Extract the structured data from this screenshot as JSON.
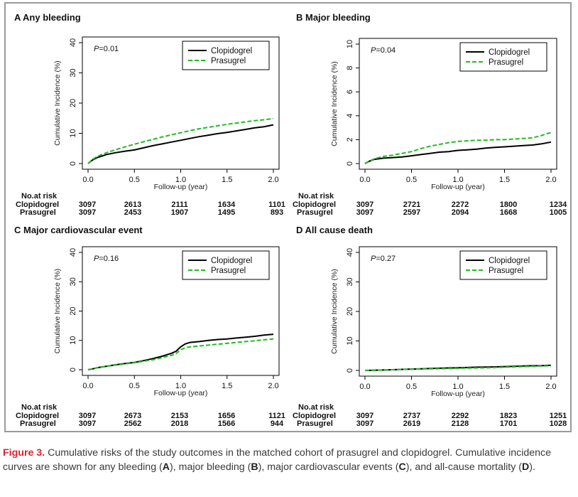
{
  "chart_data": [
    {
      "type": "line",
      "panel_label": "A",
      "title": "Any bleeding",
      "ylabel": "Cumulative Incidence (%)",
      "xlabel": "Follow-up (year)",
      "ylim": [
        0,
        40
      ],
      "yticks": [
        "0",
        "10",
        "20",
        "30",
        "40"
      ],
      "xlim": [
        0,
        2
      ],
      "xticks": [
        "0.0",
        "0.5",
        "1.0",
        "1.5",
        "2.0"
      ],
      "p_prefix": "P",
      "p_value": "=0.01",
      "legend_position": "top-right",
      "series": [
        {
          "name": "Clopidogrel",
          "color": "#000000",
          "dash": "solid",
          "x": [
            0,
            0.05,
            0.1,
            0.2,
            0.3,
            0.4,
            0.5,
            0.6,
            0.7,
            0.8,
            0.9,
            1.0,
            1.1,
            1.2,
            1.3,
            1.4,
            1.5,
            1.6,
            1.7,
            1.8,
            1.9,
            2.0
          ],
          "y": [
            0,
            1.2,
            2.0,
            3.0,
            3.6,
            4.1,
            4.5,
            5.2,
            5.9,
            6.5,
            7.1,
            7.7,
            8.3,
            8.9,
            9.4,
            9.9,
            10.3,
            10.8,
            11.3,
            11.8,
            12.2,
            12.8
          ]
        },
        {
          "name": "Prasugrel",
          "color": "#22bb22",
          "dash": "dashed",
          "x": [
            0,
            0.05,
            0.1,
            0.2,
            0.3,
            0.4,
            0.5,
            0.6,
            0.7,
            0.8,
            0.9,
            1.0,
            1.1,
            1.2,
            1.3,
            1.4,
            1.5,
            1.6,
            1.7,
            1.8,
            1.9,
            2.0
          ],
          "y": [
            0,
            1.4,
            2.4,
            3.6,
            4.6,
            5.5,
            6.4,
            7.2,
            8.0,
            8.8,
            9.5,
            10.2,
            10.9,
            11.5,
            12.0,
            12.5,
            13.0,
            13.4,
            13.8,
            14.2,
            14.5,
            14.9
          ]
        }
      ],
      "risk_header": "No.at risk",
      "risk_table": [
        {
          "label": "Clopidogrel",
          "values": [
            "3097",
            "2613",
            "2111",
            "1634",
            "1101"
          ]
        },
        {
          "label": "Prasugrel",
          "values": [
            "3097",
            "2453",
            "1907",
            "1495",
            "893"
          ]
        }
      ]
    },
    {
      "type": "line",
      "panel_label": "B",
      "title": "Major bleeding",
      "ylabel": "Cumulative Incidence (%)",
      "xlabel": "Follow-up (year)",
      "ylim": [
        0,
        10
      ],
      "yticks": [
        "0",
        "2",
        "4",
        "6",
        "8",
        "10"
      ],
      "xlim": [
        0,
        2
      ],
      "xticks": [
        "0.0",
        "0.5",
        "1.0",
        "1.5",
        "2.0"
      ],
      "p_prefix": "P",
      "p_value": "=0.04",
      "legend_position": "top-right",
      "series": [
        {
          "name": "Clopidogrel",
          "color": "#000000",
          "dash": "solid",
          "x": [
            0,
            0.05,
            0.1,
            0.2,
            0.3,
            0.4,
            0.5,
            0.6,
            0.7,
            0.8,
            0.9,
            1.0,
            1.1,
            1.2,
            1.3,
            1.4,
            1.5,
            1.6,
            1.7,
            1.8,
            1.9,
            2.0
          ],
          "y": [
            0,
            0.2,
            0.35,
            0.45,
            0.5,
            0.55,
            0.65,
            0.75,
            0.85,
            0.95,
            1.0,
            1.1,
            1.15,
            1.2,
            1.3,
            1.35,
            1.4,
            1.45,
            1.5,
            1.55,
            1.65,
            1.8
          ]
        },
        {
          "name": "Prasugrel",
          "color": "#22bb22",
          "dash": "dashed",
          "x": [
            0,
            0.05,
            0.1,
            0.2,
            0.3,
            0.4,
            0.5,
            0.6,
            0.7,
            0.8,
            0.9,
            1.0,
            1.1,
            1.2,
            1.3,
            1.4,
            1.5,
            1.6,
            1.7,
            1.8,
            1.9,
            2.0
          ],
          "y": [
            0,
            0.2,
            0.4,
            0.6,
            0.7,
            0.85,
            1.0,
            1.25,
            1.45,
            1.6,
            1.75,
            1.85,
            1.9,
            1.95,
            1.95,
            2.0,
            2.0,
            2.05,
            2.1,
            2.15,
            2.35,
            2.6
          ]
        }
      ],
      "risk_header": "No.at risk",
      "risk_table": [
        {
          "label": "Clopidogrel",
          "values": [
            "3097",
            "2721",
            "2272",
            "1800",
            "1234"
          ]
        },
        {
          "label": "Prasugrel",
          "values": [
            "3097",
            "2597",
            "2094",
            "1668",
            "1005"
          ]
        }
      ]
    },
    {
      "type": "line",
      "panel_label": "C",
      "title": "Major cardiovascular event",
      "ylabel": "Cumulative Incidence (%)",
      "xlabel": "Follow-up (year)",
      "ylim": [
        0,
        40
      ],
      "yticks": [
        "0",
        "10",
        "20",
        "30",
        "40"
      ],
      "xlim": [
        0,
        2
      ],
      "xticks": [
        "0.0",
        "0.5",
        "1.0",
        "1.5",
        "2.0"
      ],
      "p_prefix": "P",
      "p_value": "=0.16",
      "legend_position": "top-right",
      "series": [
        {
          "name": "Clopidogrel",
          "color": "#000000",
          "dash": "solid",
          "x": [
            0,
            0.05,
            0.1,
            0.2,
            0.3,
            0.4,
            0.5,
            0.6,
            0.7,
            0.8,
            0.9,
            0.95,
            1.0,
            1.05,
            1.1,
            1.2,
            1.3,
            1.4,
            1.5,
            1.6,
            1.7,
            1.8,
            1.9,
            2.0
          ],
          "y": [
            0,
            0.3,
            0.7,
            1.2,
            1.7,
            2.1,
            2.5,
            3.1,
            3.8,
            4.6,
            5.6,
            6.3,
            7.8,
            8.8,
            9.3,
            9.6,
            10.0,
            10.3,
            10.5,
            10.8,
            11.1,
            11.4,
            11.8,
            12.1
          ]
        },
        {
          "name": "Prasugrel",
          "color": "#22bb22",
          "dash": "dashed",
          "x": [
            0,
            0.05,
            0.1,
            0.2,
            0.3,
            0.4,
            0.5,
            0.6,
            0.7,
            0.8,
            0.9,
            0.95,
            1.0,
            1.05,
            1.1,
            1.2,
            1.3,
            1.4,
            1.5,
            1.6,
            1.7,
            1.8,
            1.9,
            2.0
          ],
          "y": [
            0,
            0.3,
            0.7,
            1.2,
            1.6,
            2.0,
            2.4,
            2.9,
            3.4,
            4.1,
            4.9,
            5.5,
            6.8,
            7.5,
            7.8,
            8.1,
            8.4,
            8.7,
            9.0,
            9.3,
            9.6,
            9.9,
            10.2,
            10.5
          ]
        }
      ],
      "risk_header": "No.at risk",
      "risk_table": [
        {
          "label": "Clopidogrel",
          "values": [
            "3097",
            "2673",
            "2153",
            "1656",
            "1121"
          ]
        },
        {
          "label": "Prasugrel",
          "values": [
            "3097",
            "2562",
            "2018",
            "1566",
            "944"
          ]
        }
      ]
    },
    {
      "type": "line",
      "panel_label": "D",
      "title": "All cause death",
      "ylabel": "Cumulative Incidence (%)",
      "xlabel": "Follow-up (year)",
      "ylim": [
        0,
        40
      ],
      "yticks": [
        "0",
        "10",
        "20",
        "30",
        "40"
      ],
      "xlim": [
        0,
        2
      ],
      "xticks": [
        "0.0",
        "0.5",
        "1.0",
        "1.5",
        "2.0"
      ],
      "p_prefix": "P",
      "p_value": "=0.27",
      "legend_position": "top-right",
      "series": [
        {
          "name": "Clopidogrel",
          "color": "#000000",
          "dash": "solid",
          "x": [
            0,
            0.1,
            0.2,
            0.3,
            0.4,
            0.5,
            0.6,
            0.7,
            0.8,
            0.9,
            1.0,
            1.1,
            1.2,
            1.3,
            1.4,
            1.5,
            1.6,
            1.7,
            1.8,
            1.9,
            2.0
          ],
          "y": [
            0,
            0.05,
            0.15,
            0.25,
            0.35,
            0.45,
            0.55,
            0.65,
            0.75,
            0.85,
            0.9,
            1.0,
            1.1,
            1.15,
            1.2,
            1.3,
            1.4,
            1.5,
            1.6,
            1.65,
            1.75
          ]
        },
        {
          "name": "Prasugrel",
          "color": "#22bb22",
          "dash": "dashed",
          "x": [
            0,
            0.1,
            0.2,
            0.3,
            0.4,
            0.5,
            0.6,
            0.7,
            0.8,
            0.9,
            1.0,
            1.1,
            1.2,
            1.3,
            1.4,
            1.5,
            1.6,
            1.7,
            1.8,
            1.9,
            2.0
          ],
          "y": [
            0,
            0.05,
            0.15,
            0.25,
            0.35,
            0.4,
            0.5,
            0.55,
            0.6,
            0.65,
            0.7,
            0.8,
            0.85,
            0.9,
            1.0,
            1.1,
            1.2,
            1.3,
            1.4,
            1.5,
            1.6
          ]
        }
      ],
      "risk_header": "No.at risk",
      "risk_table": [
        {
          "label": "Clopidogrel",
          "values": [
            "3097",
            "2737",
            "2292",
            "1823",
            "1251"
          ]
        },
        {
          "label": "Prasugrel",
          "values": [
            "3097",
            "2619",
            "2128",
            "1701",
            "1028"
          ]
        }
      ]
    }
  ],
  "caption": {
    "figure_label": "Figure 3.",
    "text_1": " Cumulative risks of the study outcomes in the matched cohort of prasugrel and clopidogrel. Cumulative incidence curves are shown for any bleeding (",
    "bold_a": "A",
    "text_2": "), major bleeding (",
    "bold_b": "B",
    "text_3": "), major cardiovascular events (",
    "bold_c": "C",
    "text_4": "), and all-cause mortality (",
    "bold_d": "D",
    "text_5": ")."
  }
}
